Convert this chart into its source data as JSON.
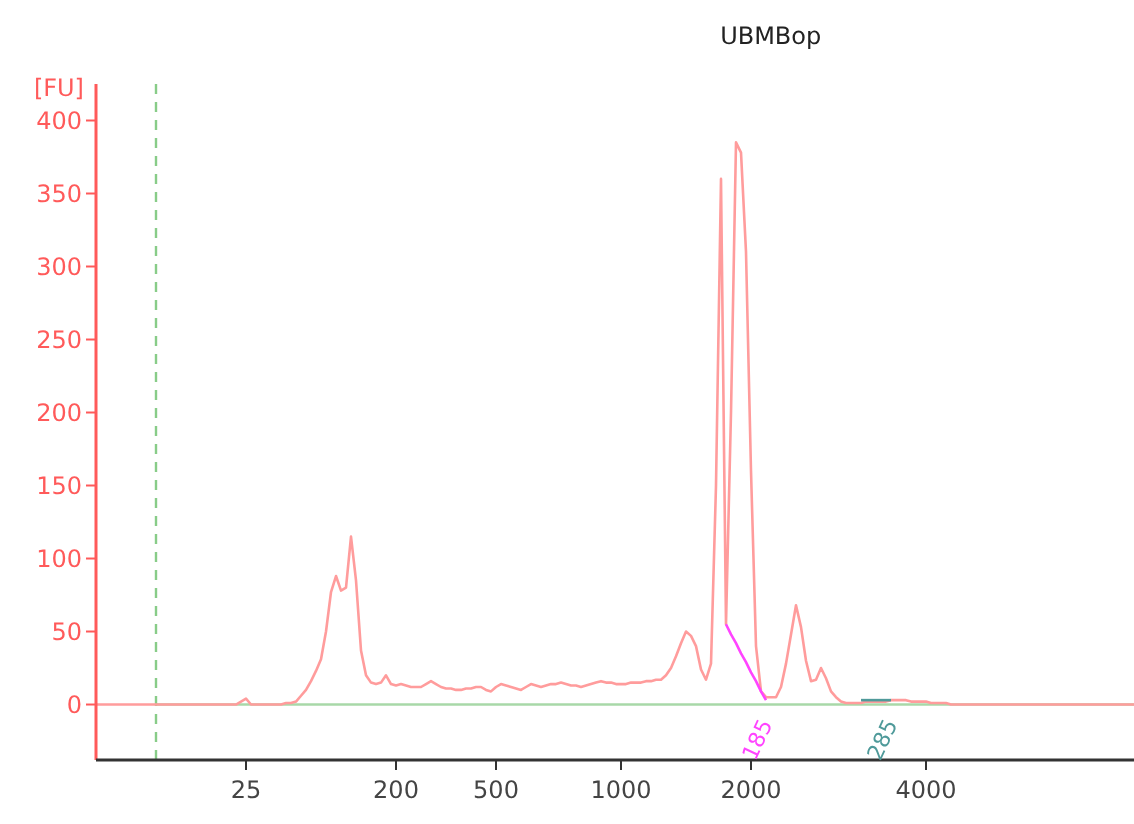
{
  "chart_data": {
    "type": "line",
    "title": "UBMBop",
    "ylabel": "[FU]",
    "categories": [
      null,
      null,
      null,
      null,
      null,
      null,
      null,
      null,
      null,
      null,
      null,
      null,
      null,
      null,
      null,
      null,
      null,
      null,
      null,
      null,
      null,
      null,
      null,
      null,
      null,
      null,
      null,
      null,
      null,
      null,
      "25",
      null,
      null,
      null,
      null,
      null,
      null,
      null,
      null,
      null,
      null,
      null,
      null,
      null,
      null,
      null,
      null,
      null,
      null,
      null,
      null,
      null,
      null,
      null,
      null,
      null,
      null,
      null,
      null,
      null,
      "200",
      null,
      null,
      null,
      null,
      null,
      null,
      null,
      null,
      null,
      null,
      null,
      null,
      null,
      null,
      null,
      null,
      null,
      null,
      null,
      "500",
      null,
      null,
      null,
      null,
      null,
      null,
      null,
      null,
      null,
      null,
      null,
      null,
      null,
      null,
      null,
      null,
      null,
      null,
      null,
      null,
      null,
      null,
      null,
      null,
      "1000",
      null,
      null,
      null,
      null,
      null,
      null,
      null,
      null,
      null,
      null,
      null,
      null,
      null,
      null,
      null,
      null,
      null,
      null,
      null,
      null,
      null,
      null,
      null,
      null,
      null,
      "2000",
      null,
      null,
      null,
      null,
      null,
      null,
      null,
      null,
      null,
      null,
      null,
      null,
      null,
      null,
      null,
      null,
      null,
      null,
      null,
      null,
      null,
      null,
      null,
      null,
      null,
      null,
      null,
      null,
      null,
      null,
      null,
      null,
      null,
      null,
      "4000",
      null,
      null,
      null,
      null,
      null,
      null,
      null,
      null,
      null,
      null,
      null,
      null,
      null,
      null,
      null,
      null,
      null,
      null,
      null,
      null,
      null,
      null,
      null,
      null,
      null,
      null,
      null,
      null,
      null,
      null,
      null,
      null,
      null,
      null,
      null,
      null,
      null,
      null,
      null,
      null,
      null,
      null
    ],
    "ylim": [
      -38,
      425
    ],
    "yticks": [
      0,
      50,
      100,
      150,
      200,
      250,
      300,
      350,
      400
    ],
    "grid": false,
    "marker": "none",
    "line_style": "solid",
    "series": [
      {
        "color": "#ff9c9c",
        "values": [
          0,
          0,
          0,
          0,
          0,
          0,
          0,
          0,
          0,
          0,
          0,
          0,
          0,
          0,
          0,
          0,
          0,
          0,
          0,
          0,
          0,
          0,
          0,
          0,
          0,
          0,
          0,
          0,
          0,
          2,
          4,
          0,
          0,
          0,
          0,
          0,
          0,
          0,
          1,
          1,
          2,
          6,
          10,
          16,
          23,
          31,
          50,
          77,
          88,
          78,
          80,
          115,
          85,
          37,
          20,
          15,
          14,
          15,
          20,
          14,
          13,
          14,
          13,
          12,
          12,
          12,
          14,
          16,
          14,
          12,
          11,
          11,
          10,
          10,
          11,
          11,
          12,
          12,
          10,
          9,
          12,
          14,
          13,
          12,
          11,
          10,
          12,
          14,
          13,
          12,
          13,
          14,
          14,
          15,
          14,
          13,
          13,
          12,
          13,
          14,
          15,
          16,
          15,
          15,
          14,
          14,
          14,
          15,
          15,
          15,
          16,
          16,
          17,
          17,
          20,
          25,
          33,
          42,
          50,
          47,
          40,
          24,
          17,
          28,
          150,
          360,
          55,
          200,
          385,
          378,
          310,
          160,
          40,
          9,
          5,
          5,
          5,
          12,
          28,
          48,
          68,
          53,
          30,
          16,
          17,
          25,
          18,
          9,
          5,
          2,
          1,
          1,
          1,
          1,
          2,
          2,
          2,
          2,
          2,
          3,
          3,
          3,
          3,
          2,
          2,
          2,
          2,
          1,
          1,
          1,
          1,
          0,
          0,
          0,
          0,
          0,
          0,
          0,
          0,
          0,
          0,
          0,
          0,
          0,
          0,
          0,
          0,
          0,
          0,
          0,
          0,
          0,
          0,
          0,
          0,
          0,
          0,
          0,
          0,
          0,
          0,
          0,
          0,
          0,
          0,
          0,
          0,
          0,
          0
        ]
      },
      {
        "color": "#ff44ff",
        "values": [
          null,
          null,
          null,
          null,
          null,
          null,
          null,
          null,
          null,
          null,
          null,
          null,
          null,
          null,
          null,
          null,
          null,
          null,
          null,
          null,
          null,
          null,
          null,
          null,
          null,
          null,
          null,
          null,
          null,
          null,
          null,
          null,
          null,
          null,
          null,
          null,
          null,
          null,
          null,
          null,
          null,
          null,
          null,
          null,
          null,
          null,
          null,
          null,
          null,
          null,
          null,
          null,
          null,
          null,
          null,
          null,
          null,
          null,
          null,
          null,
          null,
          null,
          null,
          null,
          null,
          null,
          null,
          null,
          null,
          null,
          null,
          null,
          null,
          null,
          null,
          null,
          null,
          null,
          null,
          null,
          null,
          null,
          null,
          null,
          null,
          null,
          null,
          null,
          null,
          null,
          null,
          null,
          null,
          null,
          null,
          null,
          null,
          null,
          null,
          null,
          null,
          null,
          null,
          null,
          null,
          null,
          null,
          null,
          null,
          null,
          null,
          null,
          null,
          null,
          null,
          null,
          null,
          null,
          null,
          null,
          null,
          null,
          null,
          null,
          null,
          null,
          55,
          48,
          42,
          35,
          29,
          22,
          16,
          9,
          3,
          null,
          null,
          null,
          null,
          null,
          null,
          null,
          null,
          null,
          null,
          null,
          null,
          null,
          null,
          null,
          null,
          null,
          null,
          null,
          null,
          null,
          null,
          null,
          null,
          null,
          null,
          null,
          null,
          null,
          null,
          null,
          null,
          null,
          null,
          null,
          null,
          null,
          null,
          null,
          null,
          null,
          null,
          null,
          null,
          null,
          null,
          null,
          null,
          null,
          null,
          null,
          null,
          null,
          null,
          null,
          null,
          null,
          null,
          null,
          null,
          null,
          null,
          null,
          null,
          null,
          null,
          null,
          null,
          null,
          null,
          null,
          null,
          null,
          null
        ]
      },
      {
        "color": "#4f9a9a",
        "values": [
          null,
          null,
          null,
          null,
          null,
          null,
          null,
          null,
          null,
          null,
          null,
          null,
          null,
          null,
          null,
          null,
          null,
          null,
          null,
          null,
          null,
          null,
          null,
          null,
          null,
          null,
          null,
          null,
          null,
          null,
          null,
          null,
          null,
          null,
          null,
          null,
          null,
          null,
          null,
          null,
          null,
          null,
          null,
          null,
          null,
          null,
          null,
          null,
          null,
          null,
          null,
          null,
          null,
          null,
          null,
          null,
          null,
          null,
          null,
          null,
          null,
          null,
          null,
          null,
          null,
          null,
          null,
          null,
          null,
          null,
          null,
          null,
          null,
          null,
          null,
          null,
          null,
          null,
          null,
          null,
          null,
          null,
          null,
          null,
          null,
          null,
          null,
          null,
          null,
          null,
          null,
          null,
          null,
          null,
          null,
          null,
          null,
          null,
          null,
          null,
          null,
          null,
          null,
          null,
          null,
          null,
          null,
          null,
          null,
          null,
          null,
          null,
          null,
          null,
          null,
          null,
          null,
          null,
          null,
          null,
          null,
          null,
          null,
          null,
          null,
          null,
          null,
          null,
          null,
          null,
          null,
          null,
          null,
          null,
          null,
          null,
          null,
          null,
          null,
          null,
          null,
          null,
          null,
          null,
          null,
          null,
          null,
          null,
          null,
          null,
          null,
          null,
          null,
          3,
          3,
          3,
          3,
          3,
          3,
          3,
          null,
          null,
          null,
          null,
          null,
          null,
          null,
          null,
          null,
          null,
          null,
          null,
          null,
          null,
          null,
          null,
          null,
          null,
          null,
          null,
          null,
          null,
          null,
          null,
          null,
          null,
          null,
          null,
          null,
          null,
          null,
          null,
          null,
          null,
          null,
          null,
          null,
          null,
          null,
          null,
          null,
          null,
          null,
          null,
          null,
          null,
          null,
          null,
          null
        ]
      }
    ],
    "ref_lines": [
      {
        "axis": "y",
        "value": 0,
        "color": "#a8d8a8",
        "line_style": "solid"
      }
    ],
    "annotations": [
      {
        "text": "185",
        "y": 0
      },
      {
        "text": "285",
        "y": 0
      }
    ]
  }
}
